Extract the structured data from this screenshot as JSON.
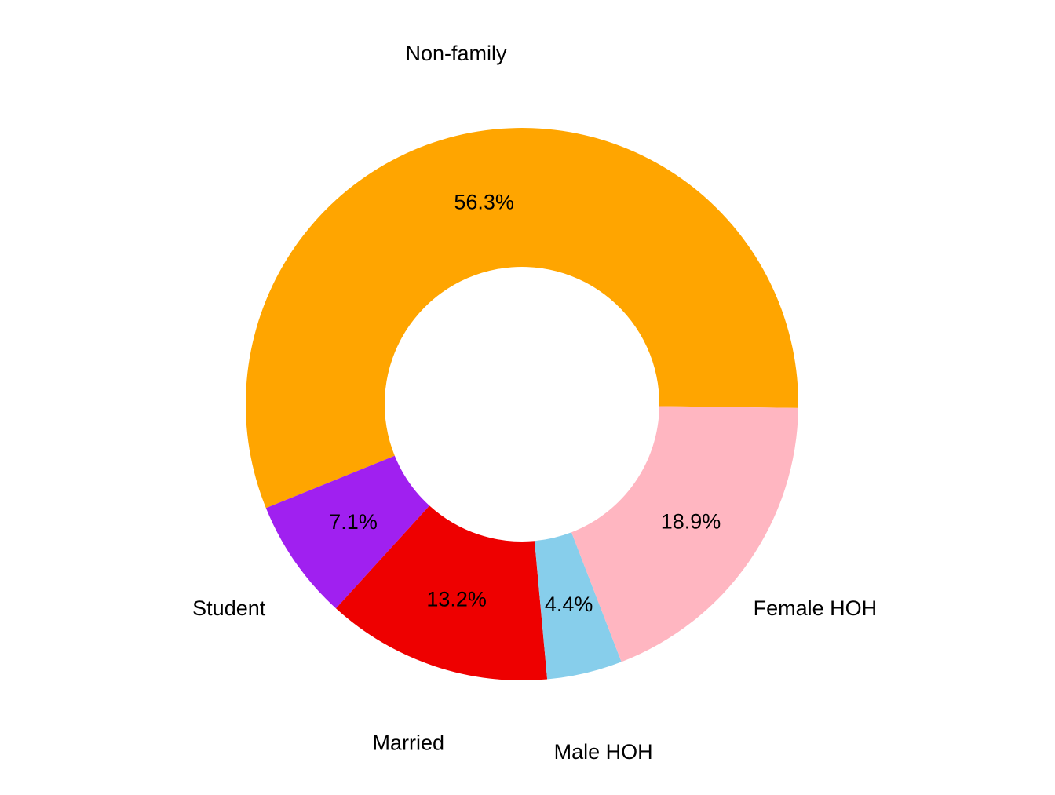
{
  "chart_data": {
    "type": "pie",
    "donut": true,
    "categories": [
      "Non-family",
      "Student",
      "Married",
      "Male HOH",
      "Female HOH"
    ],
    "values": [
      56.3,
      7.1,
      13.2,
      4.4,
      18.9
    ],
    "percent_labels": [
      "56.3%",
      "7.1%",
      "13.2%",
      "4.4%",
      "18.9%"
    ],
    "colors": [
      "#FFA500",
      "#A020F0",
      "#EE0000",
      "#87CEEB",
      "#FFB6C1"
    ],
    "title": "",
    "legend": "none"
  }
}
